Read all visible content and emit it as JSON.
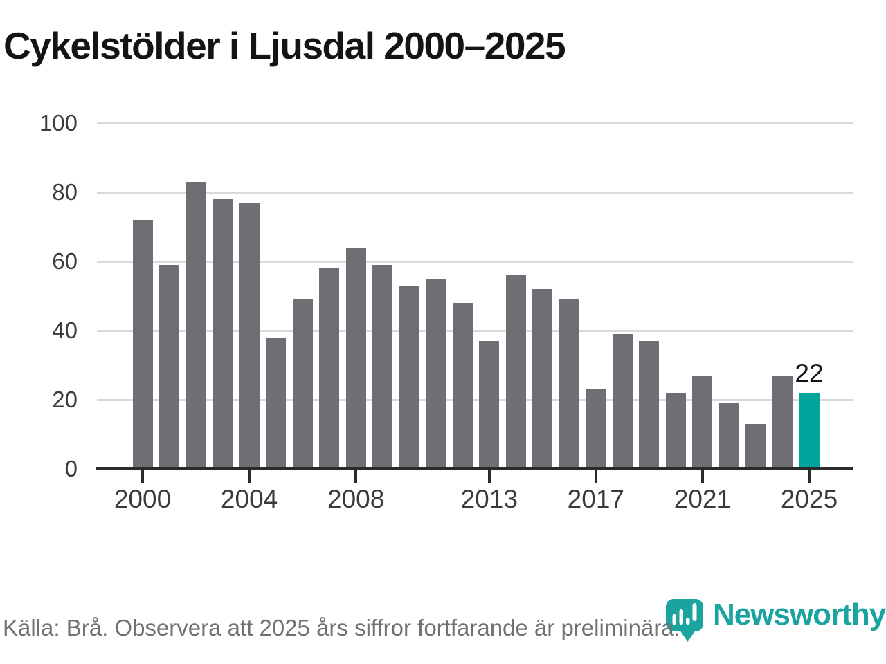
{
  "title": "Cykelstölder i Ljusdal 2000–2025",
  "source_note": "Källa: Brå. Observera att 2025 års siffror fortfarande är preliminära.",
  "brand": {
    "name": "Newsworthy",
    "logo_icon": "newsworthy-pin-chart-icon",
    "color": "#1ba39f"
  },
  "colors": {
    "bar": "#706e74",
    "highlight": "#00a49b",
    "grid": "#d9d9d9",
    "axis": "#2b2b2b",
    "title": "#141414",
    "tick_label": "#3a3a3a",
    "source": "#717175"
  },
  "chart_data": {
    "type": "bar",
    "title": "Cykelstölder i Ljusdal 2000–2025",
    "xlabel": "",
    "ylabel": "",
    "x": [
      2000,
      2001,
      2002,
      2003,
      2004,
      2005,
      2006,
      2007,
      2008,
      2009,
      2010,
      2011,
      2012,
      2013,
      2014,
      2015,
      2016,
      2017,
      2018,
      2019,
      2020,
      2021,
      2022,
      2023,
      2024,
      2025
    ],
    "values": [
      72,
      59,
      83,
      78,
      77,
      38,
      49,
      58,
      64,
      59,
      53,
      55,
      48,
      37,
      56,
      52,
      49,
      23,
      39,
      37,
      22,
      27,
      19,
      13,
      27,
      22
    ],
    "highlight_year": 2025,
    "highlight_value_label": "22",
    "ylim": [
      0,
      100
    ],
    "yticks": [
      0,
      20,
      40,
      60,
      80,
      100
    ],
    "xticks": [
      2000,
      2004,
      2008,
      2013,
      2017,
      2021,
      2025
    ],
    "grid": true,
    "legend": false
  }
}
